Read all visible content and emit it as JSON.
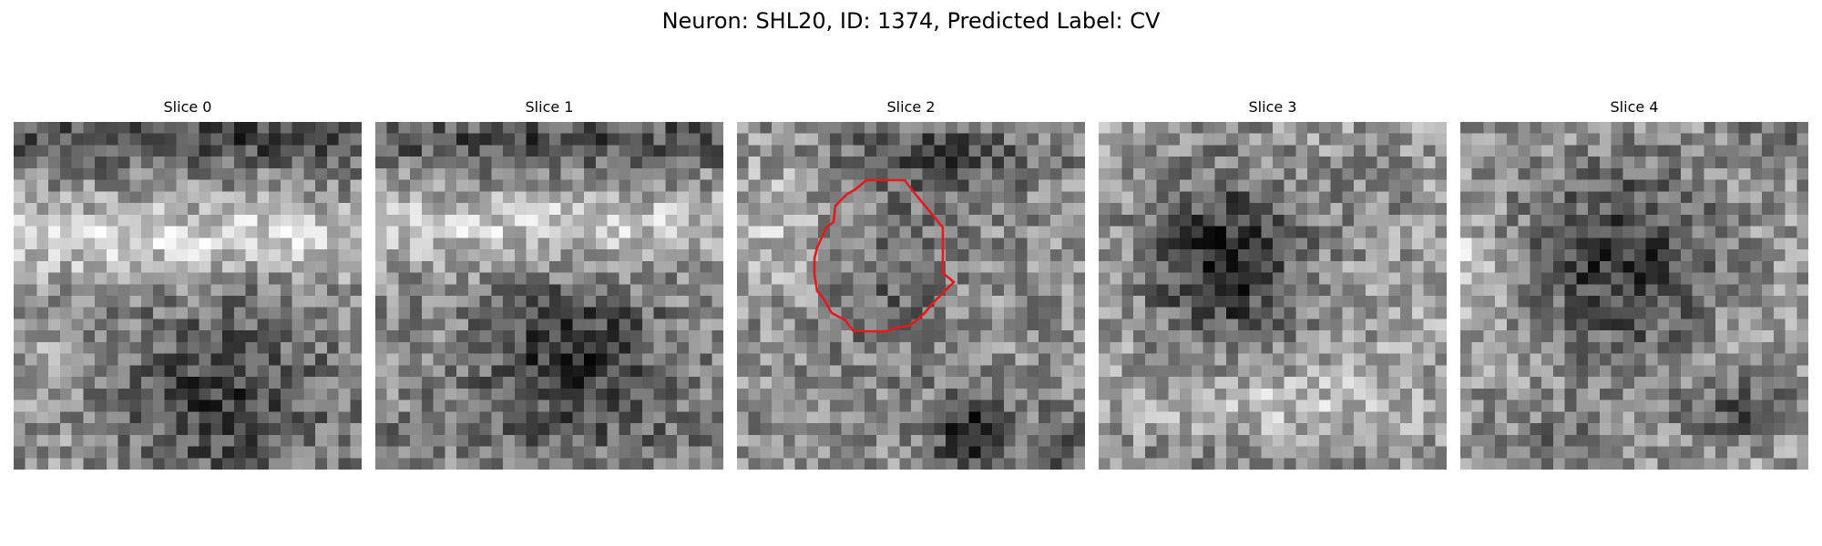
{
  "figure": {
    "title": "Neuron: SHL20, ID: 1374, Predicted Label: CV"
  },
  "panels": [
    {
      "title": "Slice 0"
    },
    {
      "title": "Slice 1"
    },
    {
      "title": "Slice 2"
    },
    {
      "title": "Slice 3"
    },
    {
      "title": "Slice 4"
    }
  ],
  "colors": {
    "outline": "#e41a1c",
    "background": "#ffffff"
  }
}
